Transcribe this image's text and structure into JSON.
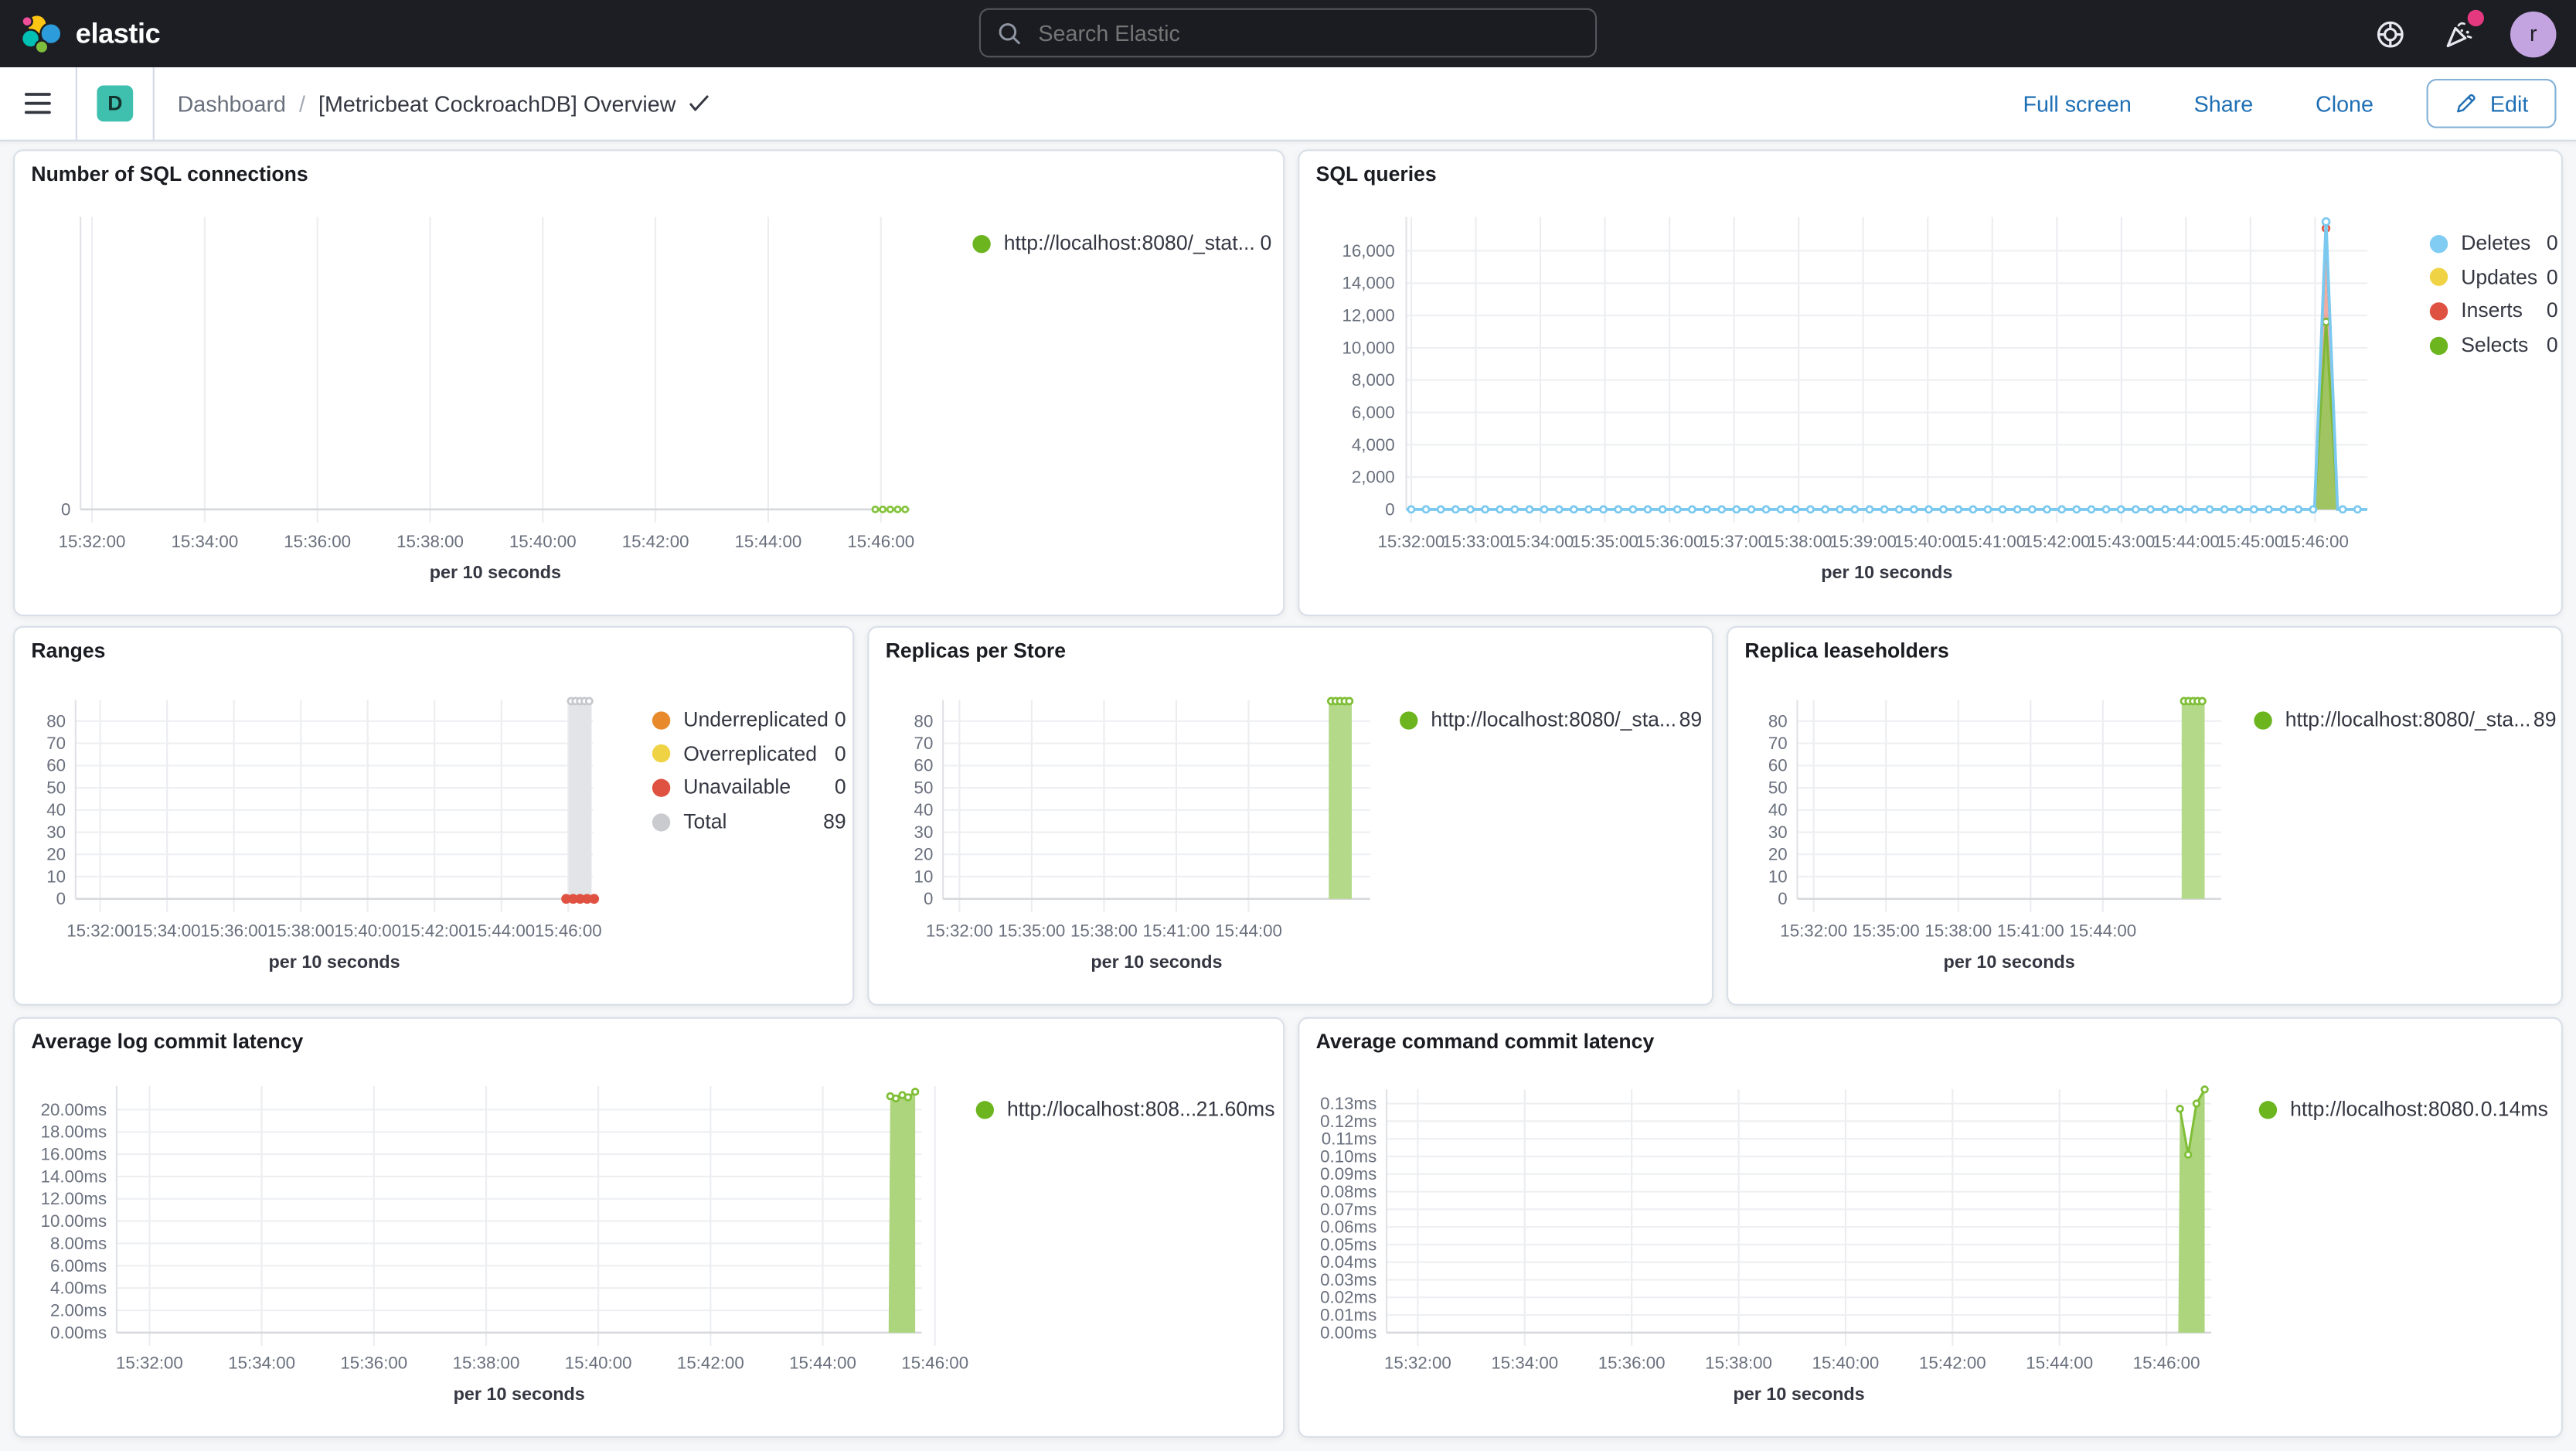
{
  "header": {
    "logo_text": "elastic",
    "search_placeholder": "Search Elastic",
    "avatar_initial": "r",
    "icons": [
      "help-icon",
      "newsfeed-icon"
    ]
  },
  "chrome": {
    "app_badge": "D",
    "breadcrumb_root": "Dashboard",
    "breadcrumb_sep": "/",
    "title": "[Metricbeat CockroachDB] Overview",
    "actions": {
      "full_screen": "Full screen",
      "share": "Share",
      "clone": "Clone",
      "edit": "Edit"
    }
  },
  "colors": {
    "green": "#6CB51F",
    "light_blue": "#81CCF3",
    "yellow": "#F0D344",
    "red": "#DF5140",
    "orange": "#E8892B",
    "gray": "#C9CBCF",
    "link_blue": "#1F6FB5",
    "badge_teal": "#3FC0AE",
    "notification_pink": "#E5397F"
  },
  "panels": [
    {
      "id": "sql-connections",
      "title": "Number of SQL connections",
      "legend": [
        {
          "label": "http://localhost:8080/_stat...",
          "value": "0",
          "color": "#6CB51F"
        }
      ],
      "chart_data": {
        "type": "line",
        "xlabel": "per 10 seconds",
        "x_ticks": [
          "15:32:00",
          "15:34:00",
          "15:36:00",
          "15:38:00",
          "15:40:00",
          "15:42:00",
          "15:44:00",
          "15:46:00"
        ],
        "y_ticks": [
          {
            "v": 0,
            "label": "0"
          }
        ],
        "ylim": [
          0,
          1
        ],
        "series": [
          {
            "name": "http://localhost:8080/_stat...",
            "type": "line",
            "color": "#86C440",
            "marker": true,
            "points": [
              [
                0.958,
                0
              ],
              [
                0.967,
                0
              ],
              [
                0.976,
                0
              ],
              [
                0.985,
                0
              ],
              [
                0.994,
                0
              ]
            ]
          }
        ]
      }
    },
    {
      "id": "sql-queries",
      "title": "SQL queries",
      "legend": [
        {
          "label": "Deletes",
          "value": "0",
          "color": "#81CCF3"
        },
        {
          "label": "Updates",
          "value": "0",
          "color": "#F0D344"
        },
        {
          "label": "Inserts",
          "value": "0",
          "color": "#DF5140"
        },
        {
          "label": "Selects",
          "value": "0",
          "color": "#6CB51F"
        }
      ],
      "chart_data": {
        "type": "line",
        "xlabel": "per 10 seconds",
        "x_ticks": [
          "15:32:00",
          "15:33:00",
          "15:34:00",
          "15:35:00",
          "15:36:00",
          "15:37:00",
          "15:38:00",
          "15:39:00",
          "15:40:00",
          "15:41:00",
          "15:42:00",
          "15:43:00",
          "15:44:00",
          "15:45:00",
          "15:46:00"
        ],
        "y_ticks": [
          {
            "v": 0,
            "label": "0"
          },
          {
            "v": 2000,
            "label": "2,000"
          },
          {
            "v": 4000,
            "label": "4,000"
          },
          {
            "v": 6000,
            "label": "6,000"
          },
          {
            "v": 8000,
            "label": "8,000"
          },
          {
            "v": 10000,
            "label": "10,000"
          },
          {
            "v": 12000,
            "label": "12,000"
          },
          {
            "v": 14000,
            "label": "14,000"
          },
          {
            "v": 16000,
            "label": "16,000"
          }
        ],
        "ylim": [
          0,
          18100
        ],
        "series": [
          {
            "name": "Inserts",
            "type": "area",
            "line": "#DE5B47",
            "fill": "rgba(222,91,71,0.5)",
            "points": [
              [
                0.945,
                0
              ],
              [
                0.957,
                17400
              ],
              [
                0.969,
                0
              ]
            ],
            "markers": [
              1
            ]
          },
          {
            "name": "Selects",
            "type": "area",
            "line": "#7FB836",
            "fill": "rgba(151,199,90,0.9)",
            "points": [
              [
                0.945,
                0
              ],
              [
                0.957,
                11600
              ],
              [
                0.969,
                0
              ]
            ],
            "markers": [
              1
            ]
          },
          {
            "name": "Deletes",
            "type": "baseline-spike",
            "color": "#7CC9EF",
            "spike": {
              "x": 0.957,
              "v": 17800,
              "half": 0.012
            },
            "marker_gap": 9
          }
        ]
      }
    },
    {
      "id": "ranges",
      "title": "Ranges",
      "legend": [
        {
          "label": "Underreplicated",
          "value": "0",
          "color": "#E8892B"
        },
        {
          "label": "Overreplicated",
          "value": "0",
          "color": "#F0D344"
        },
        {
          "label": "Unavailable",
          "value": "0",
          "color": "#DF5140"
        },
        {
          "label": "Total",
          "value": "89",
          "color": "#C9CBCF"
        }
      ],
      "chart_data": {
        "type": "bar",
        "xlabel": "per 10 seconds",
        "x_ticks": [
          "15:32:00",
          "15:34:00",
          "15:36:00",
          "15:38:00",
          "15:40:00",
          "15:42:00",
          "15:44:00",
          "15:46:00"
        ],
        "y_ticks": [
          {
            "v": 0,
            "label": "0"
          },
          {
            "v": 10,
            "label": "10"
          },
          {
            "v": 20,
            "label": "20"
          },
          {
            "v": 30,
            "label": "30"
          },
          {
            "v": 40,
            "label": "40"
          },
          {
            "v": 50,
            "label": "50"
          },
          {
            "v": 60,
            "label": "60"
          },
          {
            "v": 70,
            "label": "70"
          },
          {
            "v": 80,
            "label": "80"
          }
        ],
        "ylim": [
          0,
          89.5
        ],
        "series": [
          {
            "name": "Total",
            "type": "bar",
            "fill": "#E3E4E7",
            "x": 0.975,
            "w": 14,
            "v": 89,
            "top_markers": {
              "n": 5,
              "color": "#C6C8CC"
            }
          },
          {
            "name": "Unavailable",
            "type": "dots",
            "color": "#DF5140",
            "x": 0.975,
            "w": 17,
            "n": 5,
            "v": 0
          }
        ]
      }
    },
    {
      "id": "replicas-per-store",
      "title": "Replicas per Store",
      "legend": [
        {
          "label": "http://localhost:8080/_sta...",
          "value": "89",
          "color": "#6CB51F"
        }
      ],
      "chart_data": {
        "type": "bar",
        "xlabel": "per 10 seconds",
        "x_ticks": [
          "15:32:00",
          "15:35:00",
          "15:38:00",
          "15:41:00",
          "15:44:00"
        ],
        "y_ticks": [
          {
            "v": 0,
            "label": "0"
          },
          {
            "v": 10,
            "label": "10"
          },
          {
            "v": 20,
            "label": "20"
          },
          {
            "v": 30,
            "label": "30"
          },
          {
            "v": 40,
            "label": "40"
          },
          {
            "v": 50,
            "label": "50"
          },
          {
            "v": 60,
            "label": "60"
          },
          {
            "v": 70,
            "label": "70"
          },
          {
            "v": 80,
            "label": "80"
          }
        ],
        "ylim": [
          0,
          89.5
        ],
        "series": [
          {
            "name": "http://localhost:8080/_sta...",
            "type": "bar",
            "fill": "#B3D989",
            "x": 0.93,
            "w": 14,
            "v": 89,
            "top_markers": {
              "n": 5,
              "color": "#7FBE36"
            }
          }
        ]
      }
    },
    {
      "id": "replica-leaseholders",
      "title": "Replica leaseholders",
      "legend": [
        {
          "label": "http://localhost:8080/_sta...",
          "value": "89",
          "color": "#6CB51F"
        }
      ],
      "chart_data": {
        "type": "bar",
        "xlabel": "per 10 seconds",
        "x_ticks": [
          "15:32:00",
          "15:35:00",
          "15:38:00",
          "15:41:00",
          "15:44:00"
        ],
        "y_ticks": [
          {
            "v": 0,
            "label": "0"
          },
          {
            "v": 10,
            "label": "10"
          },
          {
            "v": 20,
            "label": "20"
          },
          {
            "v": 30,
            "label": "30"
          },
          {
            "v": 40,
            "label": "40"
          },
          {
            "v": 50,
            "label": "50"
          },
          {
            "v": 60,
            "label": "60"
          },
          {
            "v": 70,
            "label": "70"
          },
          {
            "v": 80,
            "label": "80"
          }
        ],
        "ylim": [
          0,
          89.5
        ],
        "series": [
          {
            "name": "http://localhost:8080/_sta...",
            "type": "bar",
            "fill": "#B3D989",
            "x": 0.934,
            "w": 14,
            "v": 89,
            "top_markers": {
              "n": 5,
              "color": "#7FBE36"
            }
          }
        ]
      }
    },
    {
      "id": "avg-log-commit-latency",
      "title": "Average log commit latency",
      "legend": [
        {
          "label": "http://localhost:808...",
          "value": "21.60ms",
          "color": "#6CB51F"
        }
      ],
      "chart_data": {
        "type": "area",
        "xlabel": "per 10 seconds",
        "x_ticks": [
          "15:32:00",
          "15:34:00",
          "15:36:00",
          "15:38:00",
          "15:40:00",
          "15:42:00",
          "15:44:00",
          "15:46:00"
        ],
        "y_ticks": [
          {
            "v": 0,
            "label": "0.00ms"
          },
          {
            "v": 2,
            "label": "2.00ms"
          },
          {
            "v": 4,
            "label": "4.00ms"
          },
          {
            "v": 6,
            "label": "6.00ms"
          },
          {
            "v": 8,
            "label": "8.00ms"
          },
          {
            "v": 10,
            "label": "10.00ms"
          },
          {
            "v": 12,
            "label": "12.00ms"
          },
          {
            "v": 14,
            "label": "14.00ms"
          },
          {
            "v": 16,
            "label": "16.00ms"
          },
          {
            "v": 18,
            "label": "18.00ms"
          },
          {
            "v": 20,
            "label": "20.00ms"
          }
        ],
        "ylim": [
          0,
          22.1
        ],
        "series": [
          {
            "name": "http://localhost:808...",
            "type": "area-bar",
            "line": "#7FBE36",
            "fill": "#ACD57D",
            "left": 0.959,
            "right": 0.992,
            "points": [
              [
                0.961,
                21.2
              ],
              [
                0.968,
                21.0
              ],
              [
                0.976,
                21.3
              ],
              [
                0.983,
                21.1
              ],
              [
                0.992,
                21.6
              ]
            ]
          }
        ]
      }
    },
    {
      "id": "avg-command-commit-latency",
      "title": "Average command commit latency",
      "legend": [
        {
          "label": "http://localhost:8080...",
          "value": "0.14ms",
          "color": "#6CB51F"
        }
      ],
      "chart_data": {
        "type": "area",
        "xlabel": "per 10 seconds",
        "x_ticks": [
          "15:32:00",
          "15:34:00",
          "15:36:00",
          "15:38:00",
          "15:40:00",
          "15:42:00",
          "15:44:00",
          "15:46:00"
        ],
        "y_ticks": [
          {
            "v": 0,
            "label": "0.00ms"
          },
          {
            "v": 0.01,
            "label": "0.01ms"
          },
          {
            "v": 0.02,
            "label": "0.02ms"
          },
          {
            "v": 0.03,
            "label": "0.03ms"
          },
          {
            "v": 0.04,
            "label": "0.04ms"
          },
          {
            "v": 0.05,
            "label": "0.05ms"
          },
          {
            "v": 0.06,
            "label": "0.06ms"
          },
          {
            "v": 0.07,
            "label": "0.07ms"
          },
          {
            "v": 0.08,
            "label": "0.08ms"
          },
          {
            "v": 0.09,
            "label": "0.09ms"
          },
          {
            "v": 0.1,
            "label": "0.10ms"
          },
          {
            "v": 0.11,
            "label": "0.11ms"
          },
          {
            "v": 0.12,
            "label": "0.12ms"
          },
          {
            "v": 0.13,
            "label": "0.13ms"
          }
        ],
        "ylim": [
          0,
          0.138
        ],
        "series": [
          {
            "name": "http://localhost:8080...",
            "type": "area-bar",
            "line": "#7FBE36",
            "fill": "#ACD57D",
            "left": 0.96,
            "right": 0.992,
            "points": [
              [
                0.962,
                0.127
              ],
              [
                0.972,
                0.101
              ],
              [
                0.982,
                0.13
              ],
              [
                0.992,
                0.138
              ]
            ]
          }
        ]
      }
    }
  ]
}
